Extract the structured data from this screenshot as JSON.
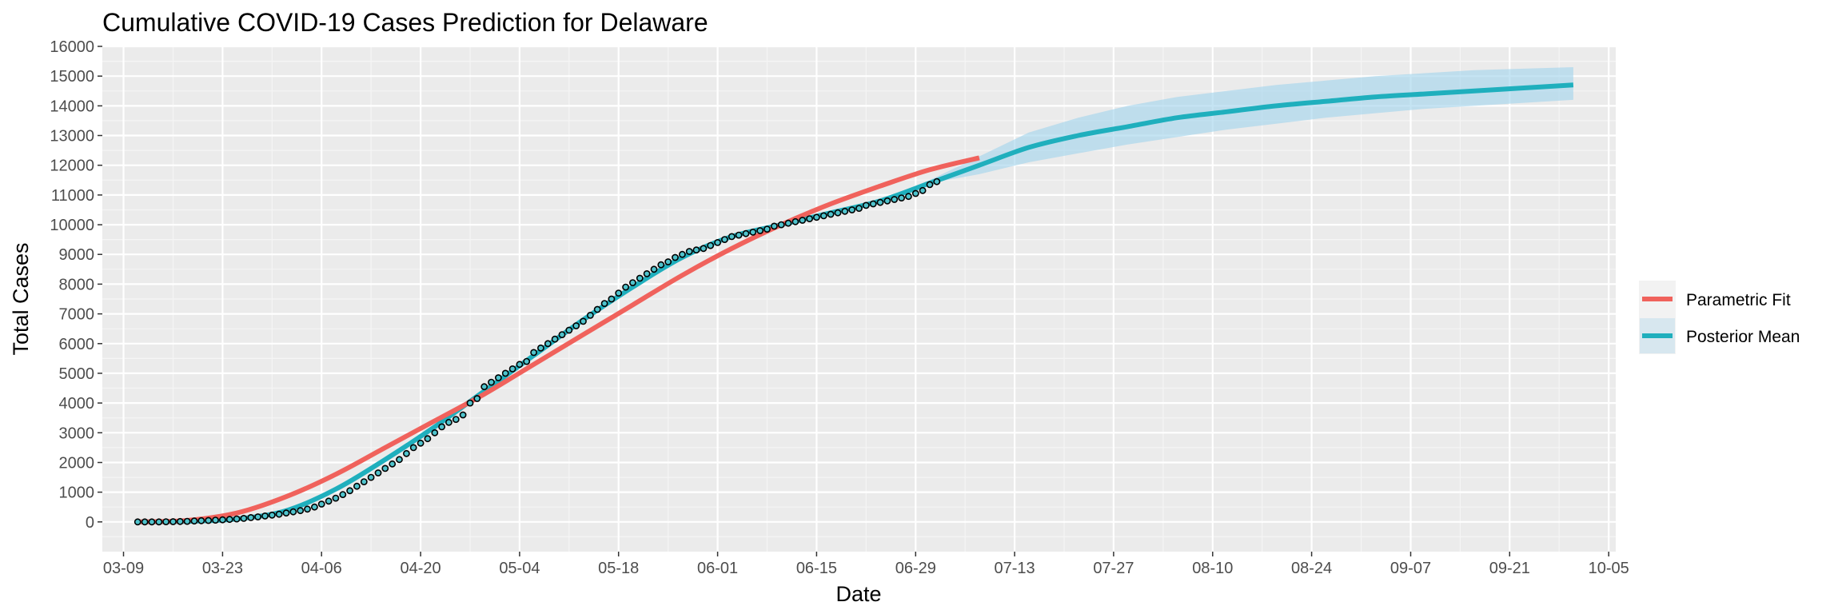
{
  "chart_data": {
    "type": "line",
    "title": "Cumulative COVID-19 Cases Prediction for Delaware",
    "xlabel": "Date",
    "ylabel": "Total Cases",
    "x_ticks": [
      "03-09",
      "03-23",
      "04-06",
      "04-20",
      "05-04",
      "05-18",
      "06-01",
      "06-15",
      "06-29",
      "07-13",
      "07-27",
      "08-10",
      "08-24",
      "09-07",
      "09-21",
      "10-05"
    ],
    "y_ticks": [
      0,
      1000,
      2000,
      3000,
      4000,
      5000,
      6000,
      7000,
      8000,
      9000,
      10000,
      11000,
      12000,
      13000,
      14000,
      15000,
      16000
    ],
    "x_range": [
      "03-06",
      "10-06"
    ],
    "ylim": [
      -1000,
      16000
    ],
    "grid": true,
    "legend_position": "right",
    "series": [
      {
        "name": "Parametric Fit",
        "color": "#F8766D",
        "x": [
          "03-11",
          "03-18",
          "03-25",
          "04-01",
          "04-08",
          "04-15",
          "04-22",
          "04-29",
          "05-06",
          "05-13",
          "05-20",
          "05-27",
          "06-03",
          "06-10",
          "06-17",
          "06-24",
          "07-01",
          "07-08"
        ],
        "values": [
          0,
          50,
          300,
          850,
          1600,
          2500,
          3400,
          4300,
          5300,
          6300,
          7300,
          8300,
          9200,
          10000,
          10700,
          11300,
          11850,
          12250
        ]
      },
      {
        "name": "Posterior Mean",
        "color": "#00BFC4",
        "x": [
          "03-11",
          "03-18",
          "03-25",
          "04-01",
          "04-08",
          "04-15",
          "04-22",
          "04-29",
          "05-06",
          "05-13",
          "05-20",
          "05-27",
          "06-03",
          "06-10",
          "06-17",
          "06-24",
          "07-01",
          "07-08",
          "07-15",
          "07-22",
          "07-29",
          "08-05",
          "08-12",
          "08-19",
          "08-26",
          "09-02",
          "09-09",
          "09-16",
          "09-23",
          "09-30"
        ],
        "values": [
          0,
          20,
          100,
          380,
          1100,
          2100,
          3200,
          4400,
          5600,
          6800,
          7900,
          8900,
          9600,
          10000,
          10400,
          10800,
          11400,
          12000,
          12600,
          13000,
          13300,
          13600,
          13800,
          14000,
          14150,
          14300,
          14400,
          14500,
          14600,
          14700
        ],
        "band_lower": [
          0,
          20,
          100,
          380,
          1100,
          2100,
          3200,
          4400,
          5600,
          6800,
          7900,
          8900,
          9600,
          10000,
          10400,
          10800,
          11400,
          11700,
          12100,
          12400,
          12700,
          12950,
          13200,
          13400,
          13600,
          13750,
          13900,
          14000,
          14100,
          14200
        ],
        "band_upper": [
          0,
          20,
          100,
          380,
          1100,
          2100,
          3200,
          4400,
          5600,
          6800,
          7900,
          8900,
          9600,
          10000,
          10400,
          10800,
          11500,
          12300,
          13100,
          13600,
          14000,
          14300,
          14500,
          14700,
          14850,
          15000,
          15100,
          15200,
          15250,
          15300
        ]
      }
    ],
    "observed": {
      "x": [
        "03-11",
        "03-12",
        "03-13",
        "03-14",
        "03-15",
        "03-16",
        "03-17",
        "03-18",
        "03-19",
        "03-20",
        "03-21",
        "03-22",
        "03-23",
        "03-24",
        "03-25",
        "03-26",
        "03-27",
        "03-28",
        "03-29",
        "03-30",
        "03-31",
        "04-01",
        "04-02",
        "04-03",
        "04-04",
        "04-05",
        "04-06",
        "04-07",
        "04-08",
        "04-09",
        "04-10",
        "04-11",
        "04-12",
        "04-13",
        "04-14",
        "04-15",
        "04-16",
        "04-17",
        "04-18",
        "04-19",
        "04-20",
        "04-21",
        "04-22",
        "04-23",
        "04-24",
        "04-25",
        "04-26",
        "04-27",
        "04-28",
        "04-29",
        "04-30",
        "05-01",
        "05-02",
        "05-03",
        "05-04",
        "05-05",
        "05-06",
        "05-07",
        "05-08",
        "05-09",
        "05-10",
        "05-11",
        "05-12",
        "05-13",
        "05-14",
        "05-15",
        "05-16",
        "05-17",
        "05-18",
        "05-19",
        "05-20",
        "05-21",
        "05-22",
        "05-23",
        "05-24",
        "05-25",
        "05-26",
        "05-27",
        "05-28",
        "05-29",
        "05-30",
        "05-31",
        "06-01",
        "06-02",
        "06-03",
        "06-04",
        "06-05",
        "06-06",
        "06-07",
        "06-08",
        "06-09",
        "06-10",
        "06-11",
        "06-12",
        "06-13",
        "06-14",
        "06-15",
        "06-16",
        "06-17",
        "06-18",
        "06-19",
        "06-20",
        "06-21",
        "06-22",
        "06-23",
        "06-24",
        "06-25",
        "06-26",
        "06-27",
        "06-28",
        "06-29",
        "06-30",
        "07-01",
        "07-02"
      ],
      "values": [
        0,
        0,
        0,
        0,
        5,
        10,
        15,
        20,
        30,
        40,
        50,
        60,
        70,
        85,
        100,
        120,
        145,
        170,
        200,
        230,
        260,
        300,
        340,
        380,
        430,
        500,
        600,
        700,
        800,
        920,
        1050,
        1200,
        1350,
        1500,
        1650,
        1800,
        1950,
        2100,
        2300,
        2500,
        2650,
        2800,
        3000,
        3200,
        3350,
        3450,
        3600,
        4000,
        4150,
        4550,
        4700,
        4850,
        5000,
        5150,
        5300,
        5400,
        5700,
        5850,
        6000,
        6150,
        6300,
        6450,
        6600,
        6750,
        6950,
        7150,
        7350,
        7500,
        7700,
        7900,
        8050,
        8200,
        8350,
        8500,
        8650,
        8750,
        8900,
        9000,
        9100,
        9150,
        9200,
        9300,
        9400,
        9500,
        9600,
        9650,
        9700,
        9750,
        9800,
        9850,
        9950,
        10000,
        10050,
        10100,
        10150,
        10200,
        10250,
        10300,
        10350,
        10400,
        10450,
        10500,
        10550,
        10650,
        10700,
        10750,
        10800,
        10850,
        10900,
        10950,
        11050,
        11150,
        11350,
        11450
      ]
    }
  }
}
